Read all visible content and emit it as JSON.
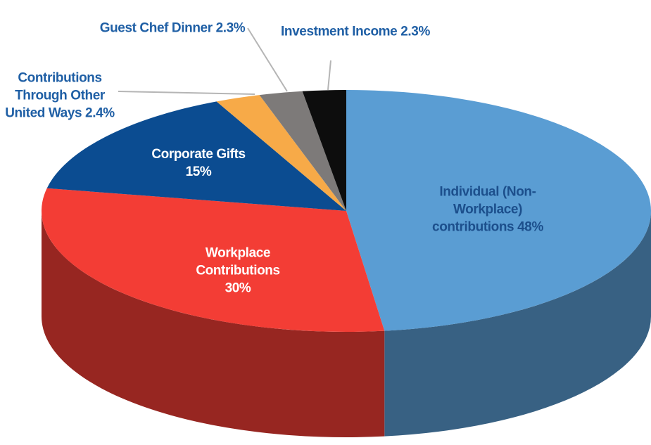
{
  "chart_data": {
    "type": "pie",
    "categories": [
      "Individual (Non-Workplace) contributions",
      "Workplace Contributions",
      "Corporate Gifts",
      "Contributions Through Other United Ways",
      "Guest Chef Dinner",
      "Investment Income"
    ],
    "values": [
      48,
      30,
      15,
      2.4,
      2.3,
      2.3
    ],
    "value_labels": [
      "48%",
      "30%",
      "15%",
      "2.4%",
      "2.3%",
      "2.3%"
    ],
    "colors": [
      "#5a9dd3",
      "#f33d35",
      "#0b4c91",
      "#f7aa48",
      "#7d7a79",
      "#0d0d0d"
    ]
  }
}
